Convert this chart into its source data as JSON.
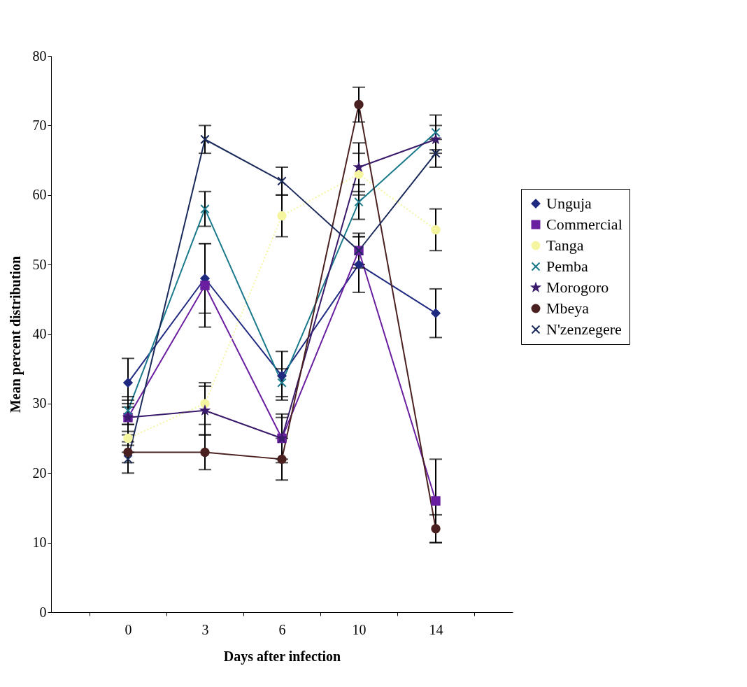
{
  "chart_data": {
    "type": "line",
    "xlabel": "Days after infection",
    "ylabel": "Mean percent distribution",
    "categories": [
      "0",
      "3",
      "6",
      "10",
      "14"
    ],
    "ylim": [
      0,
      80
    ],
    "yticks": [
      0,
      10,
      20,
      30,
      40,
      50,
      60,
      70,
      80
    ],
    "grid": false,
    "legend": "right",
    "series": [
      {
        "name": "Unguja",
        "color": "#1f2a80",
        "marker": "diamond",
        "values": [
          33,
          48,
          34,
          50,
          43
        ],
        "errors": [
          3.5,
          5,
          3.5,
          4,
          3.5
        ]
      },
      {
        "name": "Commercial",
        "color": "#6a1fa0",
        "marker": "square",
        "values": [
          28,
          47,
          25,
          52,
          16
        ],
        "errors": [
          2,
          6,
          3.5,
          2,
          6
        ]
      },
      {
        "name": "Tanga",
        "color": "#f5f5a0",
        "marker": "circle",
        "line_style": "dotted",
        "values": [
          25,
          30,
          57,
          63,
          55
        ],
        "errors": [
          2,
          3,
          3,
          3,
          3
        ]
      },
      {
        "name": "Pemba",
        "color": "#1a7a8c",
        "marker": "cross",
        "values": [
          29,
          58,
          33,
          59,
          69
        ],
        "errors": [
          2,
          2.5,
          2,
          2.5,
          2.5
        ]
      },
      {
        "name": "Morogoro",
        "color": "#3a1a6a",
        "marker": "star",
        "values": [
          28,
          29,
          25,
          64,
          68
        ],
        "errors": [
          2.5,
          3.5,
          3,
          3.5,
          2
        ]
      },
      {
        "name": "Mbeya",
        "color": "#4a2020",
        "marker": "circle",
        "values": [
          23,
          23,
          22,
          73,
          12
        ],
        "errors": [
          1.5,
          2.5,
          3,
          2.5,
          2
        ]
      },
      {
        "name": "N'zenzegere",
        "color": "#1a2a5a",
        "marker": "cross",
        "values": [
          22,
          68,
          62,
          52,
          66
        ],
        "errors": [
          2,
          2,
          2,
          2.5,
          2
        ]
      }
    ]
  }
}
